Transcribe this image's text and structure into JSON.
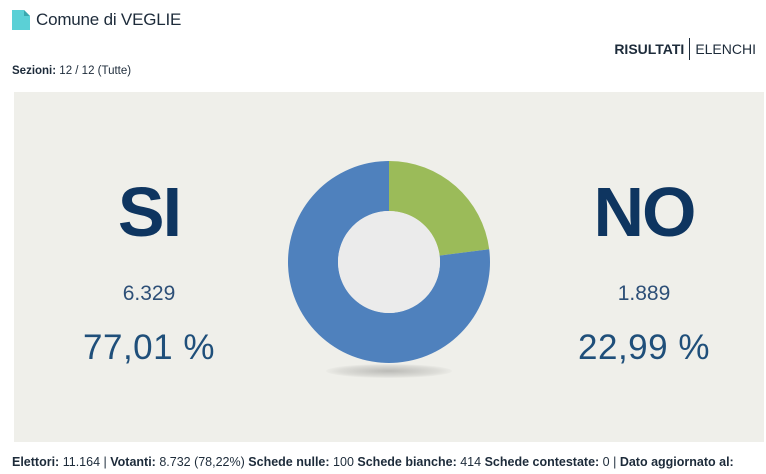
{
  "header": {
    "title": "Comune di VEGLIE",
    "icon": "document-icon",
    "icon_color": "#5bd0d6"
  },
  "nav": {
    "results": "RISULTATI",
    "lists": "ELENCHI"
  },
  "sections": {
    "label": "Sezioni:",
    "value": "12 / 12 (Tutte)"
  },
  "results": {
    "yes": {
      "label": "SI",
      "votes": "6.329",
      "percent": "77,01 %",
      "color": "#4f81bd"
    },
    "no": {
      "label": "NO",
      "votes": "1.889",
      "percent": "22,99 %",
      "color": "#9bbb59"
    }
  },
  "chart_data": {
    "type": "pie",
    "categories": [
      "SI",
      "NO"
    ],
    "values": [
      77.01,
      22.99
    ],
    "colors": [
      "#4f81bd",
      "#9bbb59"
    ],
    "donut": true
  },
  "footer": {
    "electors_label": "Elettori:",
    "electors": "11.164",
    "voters_label": "Votanti:",
    "voters": "8.732 (78,22%)",
    "null_label": "Schede nulle:",
    "null": "100",
    "blank_label": "Schede bianche:",
    "blank": "414",
    "contested_label": "Schede contestate:",
    "contested": "0",
    "updated_label": "Dato aggiornato al:"
  }
}
